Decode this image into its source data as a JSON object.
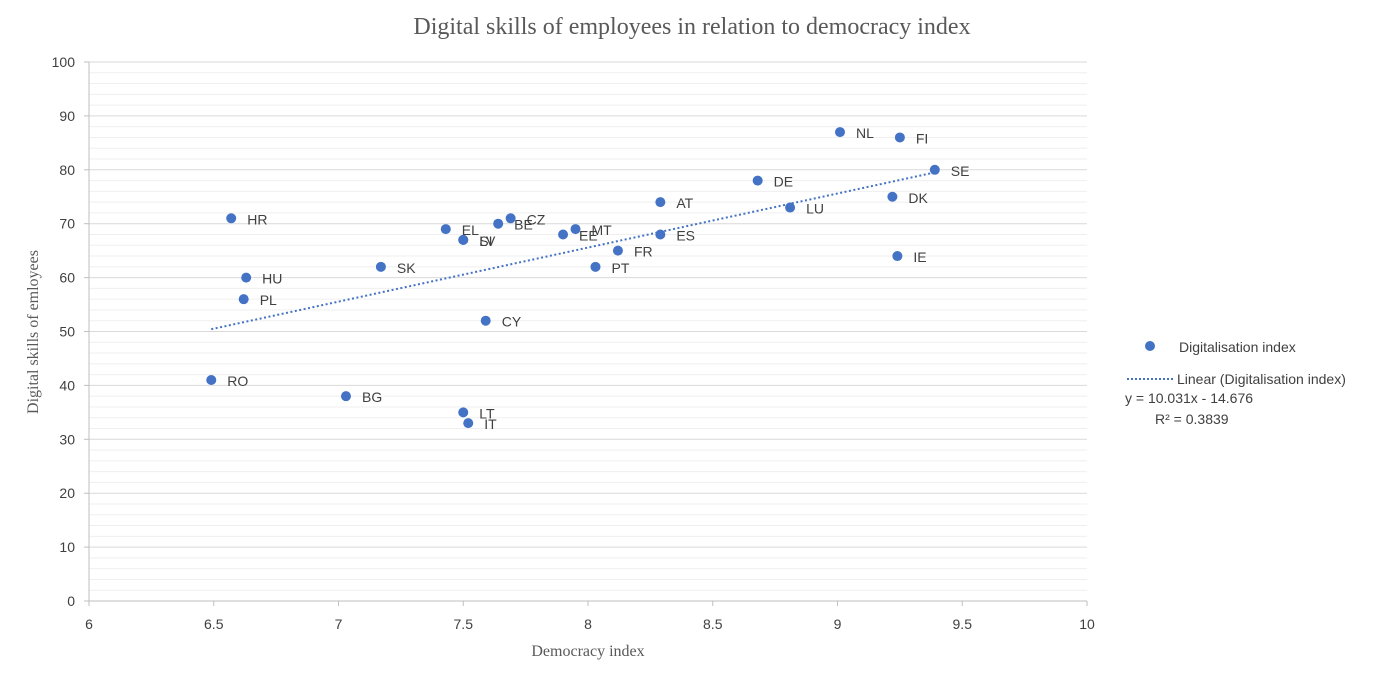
{
  "chart_data": {
    "type": "scatter",
    "title": "Digital skills of employees in relation to democracy index",
    "xlabel": "Democracy index",
    "ylabel": "Digital skills of emloyees",
    "xlim": [
      6,
      10
    ],
    "ylim": [
      0,
      100
    ],
    "x_ticks": [
      "6",
      "6.5",
      "7",
      "7.5",
      "8",
      "8.5",
      "9",
      "9.5",
      "10"
    ],
    "y_ticks": [
      "0",
      "10",
      "20",
      "30",
      "40",
      "50",
      "60",
      "70",
      "80",
      "90",
      "100"
    ],
    "grid": "horizontal",
    "legend_position": "right",
    "color": "#4472c4",
    "series": [
      {
        "name": "Digitalisation index",
        "points": [
          {
            "label": "NL",
            "x": 9.01,
            "y": 87
          },
          {
            "label": "FI",
            "x": 9.25,
            "y": 86
          },
          {
            "label": "SE",
            "x": 9.39,
            "y": 80
          },
          {
            "label": "DE",
            "x": 8.68,
            "y": 78
          },
          {
            "label": "DK",
            "x": 9.22,
            "y": 75
          },
          {
            "label": "AT",
            "x": 8.29,
            "y": 74
          },
          {
            "label": "LU",
            "x": 8.81,
            "y": 73
          },
          {
            "label": "HR",
            "x": 6.57,
            "y": 71
          },
          {
            "label": "CZ",
            "x": 7.69,
            "y": 71
          },
          {
            "label": "BE",
            "x": 7.64,
            "y": 70
          },
          {
            "label": "EL",
            "x": 7.43,
            "y": 69
          },
          {
            "label": "MT",
            "x": 7.95,
            "y": 69
          },
          {
            "label": "EE",
            "x": 7.9,
            "y": 68
          },
          {
            "label": "ES",
            "x": 8.29,
            "y": 68
          },
          {
            "label": "SI",
            "x": 7.5,
            "y": 67
          },
          {
            "label": "LV",
            "x": 7.5,
            "y": 67
          },
          {
            "label": "FR",
            "x": 8.12,
            "y": 65
          },
          {
            "label": "IE",
            "x": 9.24,
            "y": 64
          },
          {
            "label": "SK",
            "x": 7.17,
            "y": 62
          },
          {
            "label": "PT",
            "x": 8.03,
            "y": 62
          },
          {
            "label": "HU",
            "x": 6.63,
            "y": 60
          },
          {
            "label": "PL",
            "x": 6.62,
            "y": 56
          },
          {
            "label": "CY",
            "x": 7.59,
            "y": 52
          },
          {
            "label": "RO",
            "x": 6.49,
            "y": 41
          },
          {
            "label": "BG",
            "x": 7.03,
            "y": 38
          },
          {
            "label": "LT",
            "x": 7.5,
            "y": 35
          },
          {
            "label": "IT",
            "x": 7.52,
            "y": 33
          }
        ]
      }
    ],
    "trendline": {
      "name": "Linear (Digitalisation index)",
      "slope": 10.031,
      "intercept": -14.676,
      "x_range": [
        6.49,
        9.39
      ],
      "equation": "y = 10.031x - 14.676",
      "r2": "R² = 0.3839"
    }
  }
}
